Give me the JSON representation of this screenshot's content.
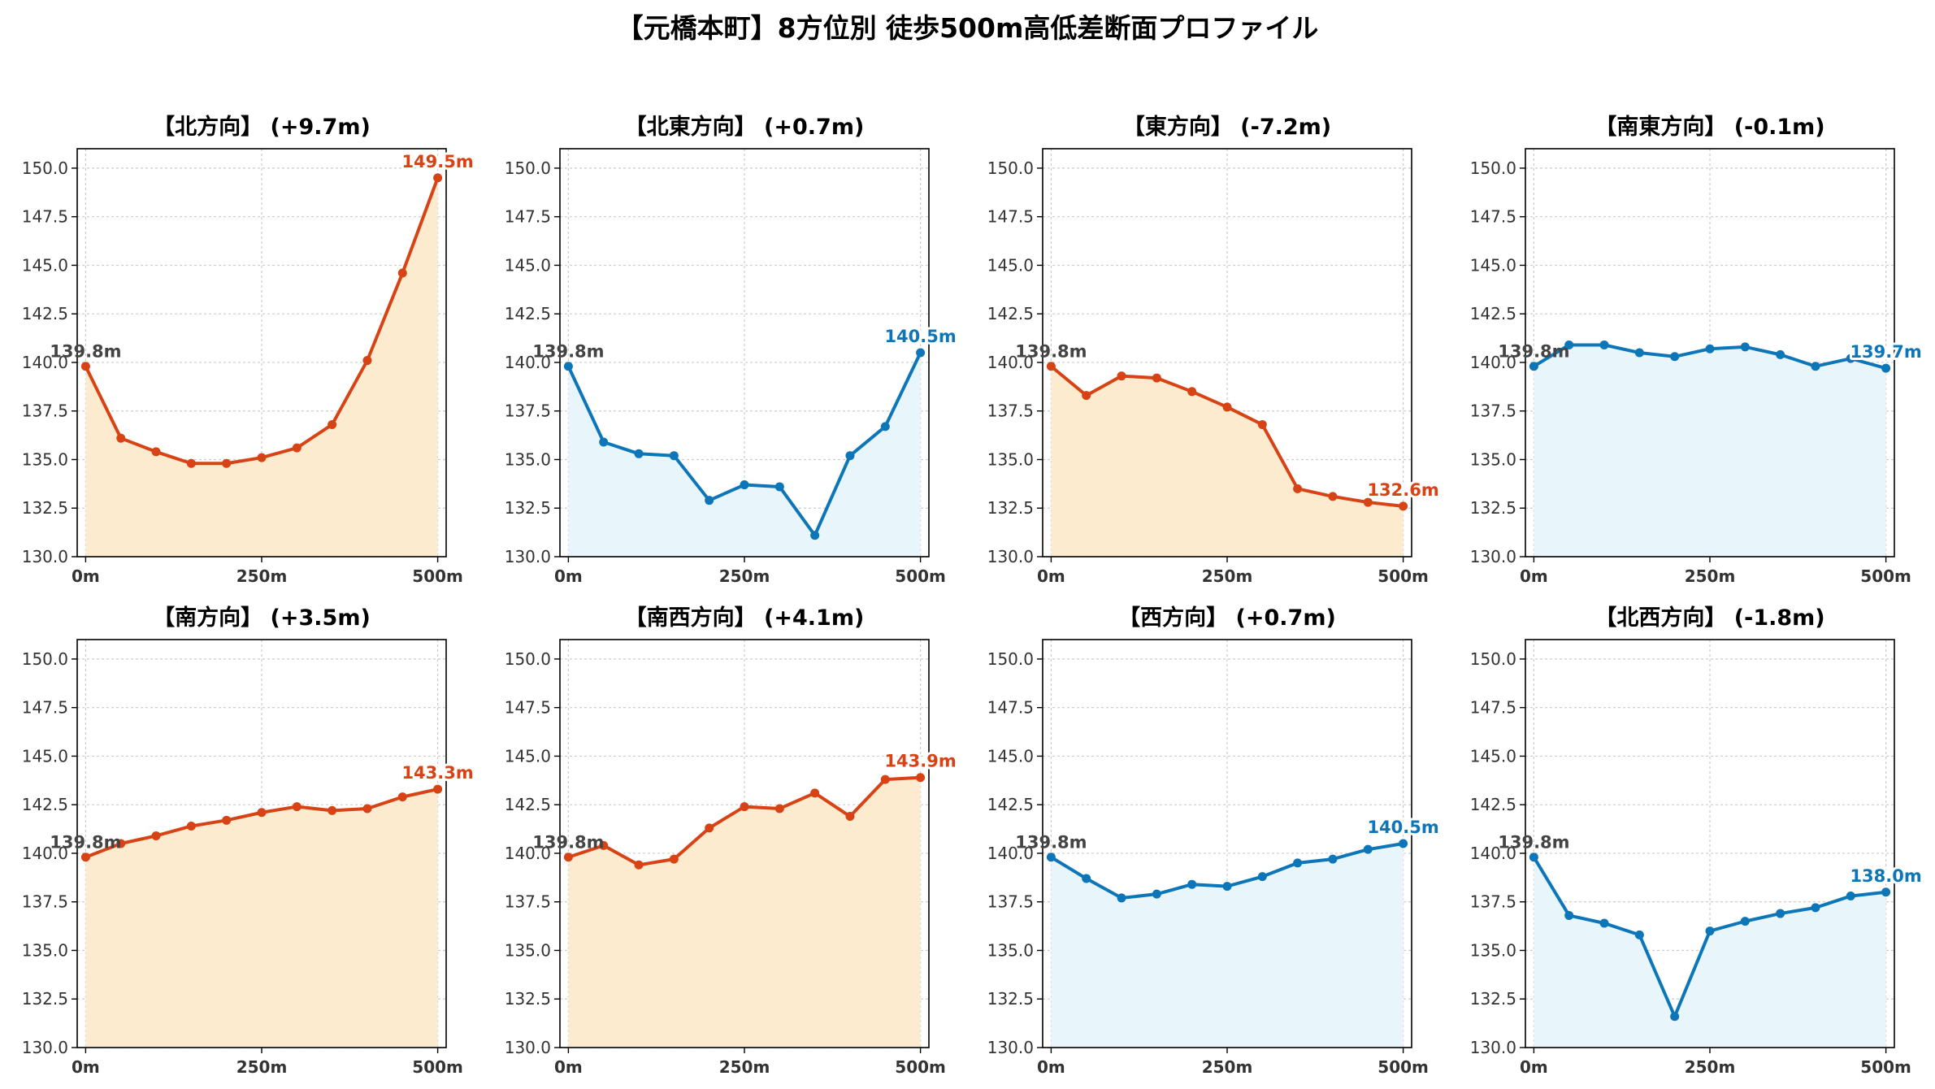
{
  "title": "【元橋本町】8方位別 徒歩500m高低差断面プロファイル",
  "colors": {
    "up_line": "#d84315",
    "up_fill": "#fdebd0",
    "down_line": "#0d76b8",
    "down_fill": "#e8f5fb",
    "start_label": "#444444"
  },
  "chart_data": [
    {
      "type": "area",
      "title": "【北方向】 (+9.7m)",
      "trend": "up",
      "x": [
        0,
        50,
        100,
        150,
        200,
        250,
        300,
        350,
        400,
        450,
        500
      ],
      "y": [
        139.8,
        136.1,
        135.4,
        134.8,
        134.8,
        135.1,
        135.6,
        136.8,
        140.1,
        144.6,
        149.5
      ],
      "start_label": "139.8m",
      "end_label": "149.5m",
      "xticks": [
        "0m",
        "250m",
        "500m"
      ],
      "ylim": [
        130,
        151
      ],
      "grid": true
    },
    {
      "type": "area",
      "title": "【北東方向】 (+0.7m)",
      "trend": "down",
      "x": [
        0,
        50,
        100,
        150,
        200,
        250,
        300,
        350,
        400,
        450,
        500
      ],
      "y": [
        139.8,
        135.9,
        135.3,
        135.2,
        132.9,
        133.7,
        133.6,
        131.1,
        135.2,
        136.7,
        140.5
      ],
      "start_label": "139.8m",
      "end_label": "140.5m",
      "xticks": [
        "0m",
        "250m",
        "500m"
      ],
      "ylim": [
        130,
        151
      ],
      "grid": true
    },
    {
      "type": "area",
      "title": "【東方向】 (-7.2m)",
      "trend": "up",
      "x": [
        0,
        50,
        100,
        150,
        200,
        250,
        300,
        350,
        400,
        450,
        500
      ],
      "y": [
        139.8,
        138.3,
        139.3,
        139.2,
        138.5,
        137.7,
        136.8,
        133.5,
        133.1,
        132.8,
        132.6
      ],
      "start_label": "139.8m",
      "end_label": "132.6m",
      "xticks": [
        "0m",
        "250m",
        "500m"
      ],
      "ylim": [
        130,
        151
      ],
      "grid": true
    },
    {
      "type": "area",
      "title": "【南東方向】 (-0.1m)",
      "trend": "down",
      "x": [
        0,
        50,
        100,
        150,
        200,
        250,
        300,
        350,
        400,
        450,
        500
      ],
      "y": [
        139.8,
        140.9,
        140.9,
        140.5,
        140.3,
        140.7,
        140.8,
        140.4,
        139.8,
        140.2,
        139.7
      ],
      "start_label": "139.8m",
      "end_label": "139.7m",
      "xticks": [
        "0m",
        "250m",
        "500m"
      ],
      "ylim": [
        130,
        151
      ],
      "grid": true
    },
    {
      "type": "area",
      "title": "【南方向】 (+3.5m)",
      "trend": "up",
      "x": [
        0,
        50,
        100,
        150,
        200,
        250,
        300,
        350,
        400,
        450,
        500
      ],
      "y": [
        139.8,
        140.5,
        140.9,
        141.4,
        141.7,
        142.1,
        142.4,
        142.2,
        142.3,
        142.9,
        143.3
      ],
      "start_label": "139.8m",
      "end_label": "143.3m",
      "xticks": [
        "0m",
        "250m",
        "500m"
      ],
      "ylim": [
        130,
        151
      ],
      "grid": true
    },
    {
      "type": "area",
      "title": "【南西方向】 (+4.1m)",
      "trend": "up",
      "x": [
        0,
        50,
        100,
        150,
        200,
        250,
        300,
        350,
        400,
        450,
        500
      ],
      "y": [
        139.8,
        140.4,
        139.4,
        139.7,
        141.3,
        142.4,
        142.3,
        143.1,
        141.9,
        143.8,
        143.9
      ],
      "start_label": "139.8m",
      "end_label": "143.9m",
      "xticks": [
        "0m",
        "250m",
        "500m"
      ],
      "ylim": [
        130,
        151
      ],
      "grid": true
    },
    {
      "type": "area",
      "title": "【西方向】 (+0.7m)",
      "trend": "down",
      "x": [
        0,
        50,
        100,
        150,
        200,
        250,
        300,
        350,
        400,
        450,
        500
      ],
      "y": [
        139.8,
        138.7,
        137.7,
        137.9,
        138.4,
        138.3,
        138.8,
        139.5,
        139.7,
        140.2,
        140.5
      ],
      "start_label": "139.8m",
      "end_label": "140.5m",
      "xticks": [
        "0m",
        "250m",
        "500m"
      ],
      "ylim": [
        130,
        151
      ],
      "grid": true
    },
    {
      "type": "area",
      "title": "【北西方向】 (-1.8m)",
      "trend": "down",
      "x": [
        0,
        50,
        100,
        150,
        200,
        250,
        300,
        350,
        400,
        450,
        500
      ],
      "y": [
        139.8,
        136.8,
        136.4,
        135.8,
        131.6,
        136.0,
        136.5,
        136.9,
        137.2,
        137.8,
        138.0
      ],
      "start_label": "139.8m",
      "end_label": "138.0m",
      "xticks": [
        "0m",
        "250m",
        "500m"
      ],
      "ylim": [
        130,
        151
      ],
      "grid": true
    }
  ],
  "yticks": [
    "130.0",
    "132.5",
    "135.0",
    "137.5",
    "140.0",
    "142.5",
    "145.0",
    "147.5",
    "150.0"
  ]
}
